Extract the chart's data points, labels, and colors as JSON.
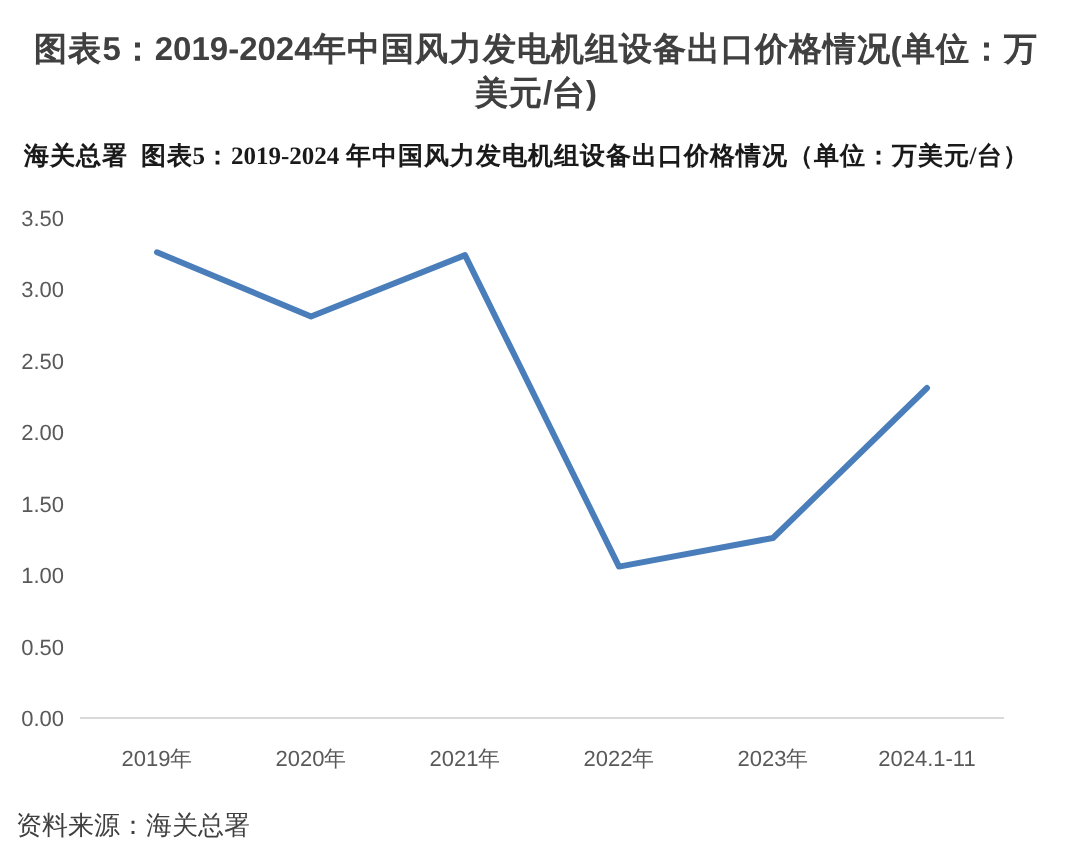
{
  "chart_data": {
    "type": "line",
    "title": "图表5：2019-2024年中国风力发电机组设备出口价格情况(单位：万美元/台)",
    "subtitle": "海关总署  图表5：2019-2024 年中国风力发电机组设备出口价格情况（单位：万美元/台）",
    "annotations": [
      "资料来源：海关总署"
    ],
    "categories": [
      "2019年",
      "2020年",
      "2021年",
      "2022年",
      "2023年",
      "2024.1-11"
    ],
    "series": [
      {
        "color": "#4a7ebb",
        "values": [
          3.26,
          2.81,
          3.24,
          1.06,
          1.26,
          2.31
        ]
      }
    ],
    "ylim": [
      0,
      3.5
    ],
    "yticks": [
      {
        "value": 0,
        "label": "0.00"
      },
      {
        "value": 0.5,
        "label": "0.50"
      },
      {
        "value": 1,
        "label": "1.00"
      },
      {
        "value": 1.5,
        "label": "1.50"
      },
      {
        "value": 2,
        "label": "2.00"
      },
      {
        "value": 2.5,
        "label": "2.50"
      },
      {
        "value": 3,
        "label": "3.00"
      },
      {
        "value": 3.5,
        "label": "3.50"
      }
    ],
    "grid": false
  }
}
